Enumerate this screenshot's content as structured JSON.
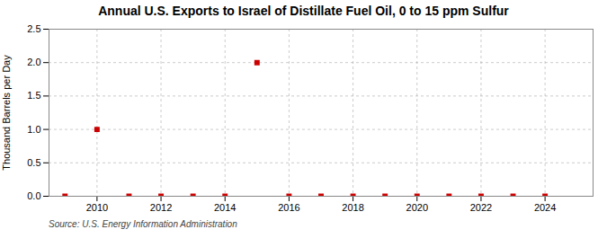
{
  "chart_data": {
    "type": "scatter",
    "title": "Annual U.S. Exports to Israel of Distillate Fuel Oil, 0 to 15 ppm Sulfur",
    "ylabel": "Thousand Barrels per Day",
    "source": "Source: U.S. Energy Information Administration",
    "x": [
      2009,
      2010,
      2011,
      2012,
      2013,
      2014,
      2015,
      2016,
      2017,
      2018,
      2019,
      2020,
      2021,
      2022,
      2023,
      2024
    ],
    "values": [
      0,
      1.0,
      0,
      0,
      0,
      0,
      2.0,
      0,
      0,
      0,
      0,
      0,
      0,
      0,
      0,
      0
    ],
    "color": "#CC0000",
    "marker": "square",
    "xlim": [
      2008.5,
      2025.5
    ],
    "ylim": [
      0,
      2.5
    ],
    "xticks": [
      2010,
      2012,
      2014,
      2016,
      2018,
      2020,
      2022,
      2024
    ],
    "yticks": [
      {
        "value": 0.0,
        "label": "0.0"
      },
      0.5,
      {
        "value": 1.0,
        "label": "1.0"
      },
      1.5,
      {
        "value": 2.0,
        "label": "2.0"
      },
      2.5
    ],
    "grid": true
  }
}
